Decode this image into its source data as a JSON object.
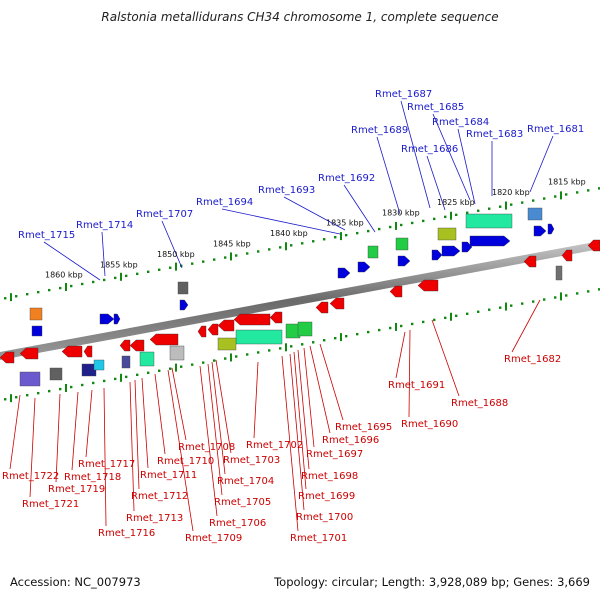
{
  "title": "Ralstonia metallidurans CH34 chromosome 1, complete sequence",
  "footer": {
    "accession": "Accession: NC_007973",
    "summary": "Topology: circular; Length: 3,928,089 bp; Genes: 3,669"
  },
  "colors": {
    "forward": "#0000dd",
    "reverse": "#ee0000",
    "backbone": "#808080",
    "ticks": "#118811",
    "top_label": "#1a1acc",
    "bottom_label": "#cc0000"
  },
  "kbp_labels": [
    "1860 kbp",
    "1855 kbp",
    "1850 kbp",
    "1845 kbp",
    "1840 kbp",
    "1835 kbp",
    "1830 kbp",
    "1825 kbp",
    "1820 kbp",
    "1815 kbp"
  ],
  "top_genes": [
    "Rmet_1715",
    "Rmet_1714",
    "Rmet_1707",
    "Rmet_1694",
    "Rmet_1693",
    "Rmet_1692",
    "Rmet_1689",
    "Rmet_1687",
    "Rmet_1686",
    "Rmet_1685",
    "Rmet_1684",
    "Rmet_1683",
    "Rmet_1681"
  ],
  "bottom_genes": [
    "Rmet_1722",
    "Rmet_1721",
    "Rmet_1719",
    "Rmet_1718",
    "Rmet_1717",
    "Rmet_1716",
    "Rmet_1713",
    "Rmet_1712",
    "Rmet_1711",
    "Rmet_1710",
    "Rmet_1709",
    "Rmet_1708",
    "Rmet_1706",
    "Rmet_1705",
    "Rmet_1704",
    "Rmet_1703",
    "Rmet_1702",
    "Rmet_1701",
    "Rmet_1700",
    "Rmet_1699",
    "Rmet_1698",
    "Rmet_1697",
    "Rmet_1696",
    "Rmet_1695",
    "Rmet_1691",
    "Rmet_1690",
    "Rmet_1688",
    "Rmet_1682"
  ]
}
